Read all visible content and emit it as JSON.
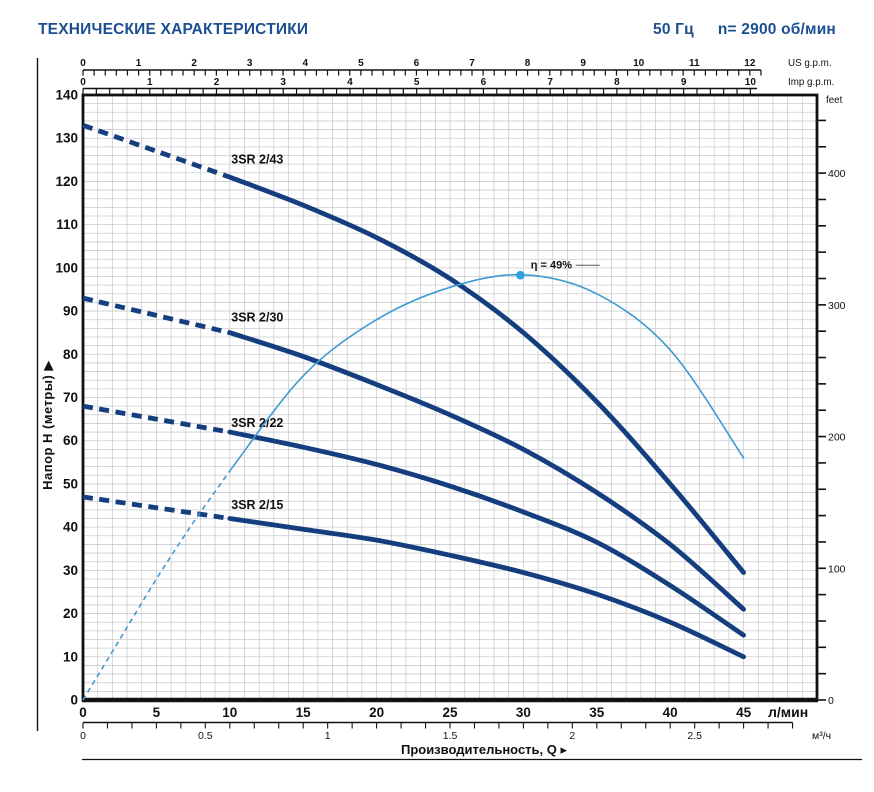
{
  "header": {
    "title": "ТЕХНИЧЕСКИЕ ХАРАКТЕРИСТИКИ",
    "frequency": "50 Гц",
    "speed": "n= 2900 об/мин"
  },
  "colors": {
    "header_blue": "#1c4e91",
    "curve_navy": "#153e7e",
    "efficiency_blue": "#3f9ad2",
    "efficiency_dot": "#2ba2df",
    "grid": "#c9cccf",
    "axis": "#111111",
    "text": "#111111"
  },
  "chart_data": {
    "type": "line",
    "x_axis": {
      "title": "Производительность, Q",
      "arrow": "▸",
      "unit": "л/мин",
      "ticks": [
        0,
        5,
        10,
        15,
        20,
        25,
        30,
        35,
        40,
        45
      ],
      "range": [
        0,
        50
      ],
      "minor_step": 1
    },
    "x_axis_secondary": {
      "unit": "м³/ч",
      "ticks": [
        "0",
        "0.5",
        "1",
        "1.5",
        "2",
        "2.5"
      ],
      "tick_values": [
        0,
        0.5,
        1,
        1.5,
        2,
        2.5
      ],
      "minor_step": 0.1,
      "max_minor": 2.9,
      "lmin_per_unit": 16.6667
    },
    "top_axis_us": {
      "unit": "US g.p.m.",
      "ticks": [
        0,
        1,
        2,
        3,
        4,
        5,
        6,
        7,
        8,
        9,
        10,
        11,
        12
      ],
      "minor_step": 0.2,
      "max_minor": 12.2,
      "lmin_per_unit": 3.7854
    },
    "top_axis_imp": {
      "unit": "Imp g.p.m.",
      "ticks": [
        0,
        1,
        2,
        3,
        4,
        5,
        6,
        7,
        8,
        9,
        10
      ],
      "minor_step": 0.2,
      "max_minor": 10.1,
      "lmin_per_unit": 4.5461
    },
    "y_axis": {
      "title": "Напор H (метры)",
      "arrow": "▶",
      "ticks": [
        0,
        10,
        20,
        30,
        40,
        50,
        60,
        70,
        80,
        90,
        100,
        110,
        120,
        130,
        140
      ],
      "range": [
        0,
        140
      ],
      "minor_step": 2
    },
    "right_axis": {
      "unit": "feet",
      "labeled_ticks": [
        0,
        100,
        200,
        300,
        400
      ],
      "minor_step": 20,
      "max_tick": 440,
      "feet_per_m": 3.2808
    },
    "series": [
      {
        "name": "3SR 2/43",
        "role": "pump",
        "points": [
          [
            0,
            133
          ],
          [
            5,
            127
          ],
          [
            10,
            121
          ],
          [
            15,
            114.5
          ],
          [
            20,
            107
          ],
          [
            25,
            97.5
          ],
          [
            30,
            85
          ],
          [
            35,
            69
          ],
          [
            40,
            50
          ],
          [
            45,
            29.5
          ]
        ],
        "dashed_until": 10,
        "label_pos": [
          10.1,
          124.2
        ]
      },
      {
        "name": "3SR 2/30",
        "role": "pump",
        "points": [
          [
            0,
            93
          ],
          [
            5,
            89
          ],
          [
            10,
            85
          ],
          [
            15,
            79.5
          ],
          [
            20,
            73
          ],
          [
            25,
            66
          ],
          [
            30,
            58
          ],
          [
            35,
            48
          ],
          [
            40,
            36
          ],
          [
            45,
            21
          ]
        ],
        "dashed_until": 10,
        "label_pos": [
          10.1,
          87.6
        ]
      },
      {
        "name": "3SR 2/22",
        "role": "pump",
        "points": [
          [
            0,
            68
          ],
          [
            5,
            65
          ],
          [
            10,
            62
          ],
          [
            15,
            58.5
          ],
          [
            20,
            54.5
          ],
          [
            25,
            49.5
          ],
          [
            30,
            43.5
          ],
          [
            35,
            36.5
          ],
          [
            40,
            26.5
          ],
          [
            45,
            15
          ]
        ],
        "dashed_until": 10,
        "label_pos": [
          10.1,
          63.2
        ]
      },
      {
        "name": "3SR 2/15",
        "role": "pump",
        "points": [
          [
            0,
            47
          ],
          [
            5,
            44.5
          ],
          [
            10,
            42
          ],
          [
            15,
            39.5
          ],
          [
            20,
            37
          ],
          [
            25,
            33.5
          ],
          [
            30,
            29.5
          ],
          [
            35,
            24.5
          ],
          [
            40,
            18
          ],
          [
            45,
            10
          ]
        ],
        "dashed_until": 10,
        "label_pos": [
          10.1,
          44.2
        ]
      },
      {
        "name": "η = 49%",
        "role": "efficiency",
        "points": [
          [
            0,
            0
          ],
          [
            2.5,
            14
          ],
          [
            5,
            28
          ],
          [
            7.5,
            41
          ],
          [
            10,
            53
          ],
          [
            15,
            75
          ],
          [
            20,
            88
          ],
          [
            25,
            95.5
          ],
          [
            30,
            98.4
          ],
          [
            35,
            94
          ],
          [
            40,
            81
          ],
          [
            45,
            56
          ]
        ],
        "dashed_until": 10,
        "peak": [
          29.8,
          98.3
        ],
        "label_pos": [
          30.5,
          99.8
        ]
      }
    ]
  }
}
